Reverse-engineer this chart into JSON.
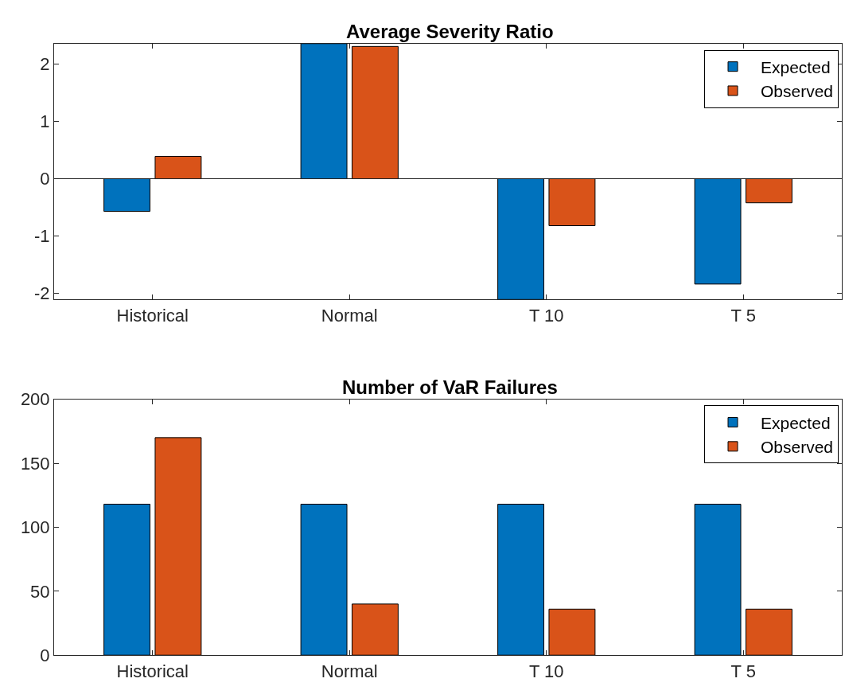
{
  "chart_data": [
    {
      "type": "bar",
      "title": "Average Severity Ratio",
      "categories": [
        "Historical",
        "Normal",
        "T 10",
        "T 5"
      ],
      "series": [
        {
          "name": "Expected",
          "color": "#0072bd",
          "values": [
            -0.57,
            2.36,
            -2.11,
            -1.84
          ]
        },
        {
          "name": "Observed",
          "color": "#d95319",
          "values": [
            0.39,
            2.31,
            -0.82,
            -0.42
          ]
        }
      ],
      "ylim": [
        -2.11,
        2.36
      ],
      "yticks": [
        -2,
        -1,
        0,
        1,
        2
      ],
      "legend": "top right",
      "ref_lines": [
        {
          "axis": "y",
          "value": 0,
          "color": "#262626"
        }
      ]
    },
    {
      "type": "bar",
      "title": "Number of VaR Failures",
      "categories": [
        "Historical",
        "Normal",
        "T 10",
        "T 5"
      ],
      "series": [
        {
          "name": "Expected",
          "color": "#0072bd",
          "values": [
            118,
            118,
            118,
            118
          ]
        },
        {
          "name": "Observed",
          "color": "#d95319",
          "values": [
            170,
            40,
            36,
            36
          ]
        }
      ],
      "ylim": [
        0,
        200
      ],
      "yticks": [
        0,
        50,
        100,
        150,
        200
      ],
      "legend": "top right"
    }
  ]
}
